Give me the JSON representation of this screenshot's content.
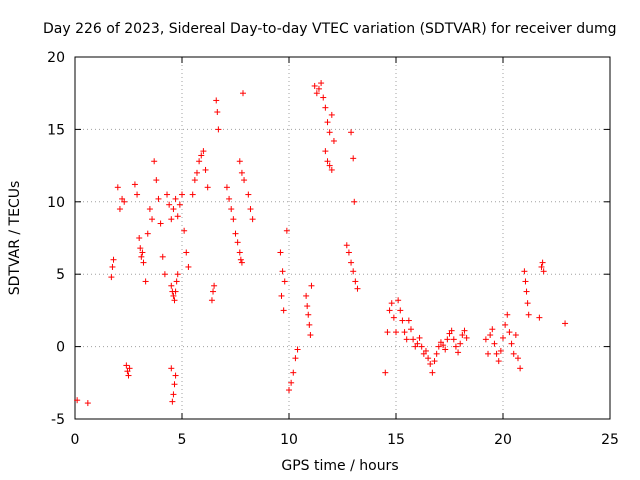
{
  "chart_data": {
    "type": "scatter",
    "title": "Day 226 of 2023, Sidereal Day-to-day VTEC variation (SDTVAR) for receiver dumg",
    "xlabel": "GPS time / hours",
    "ylabel": "SDTVAR / TECUs",
    "xlim": [
      0,
      25
    ],
    "ylim": [
      -5,
      20
    ],
    "xticks": [
      "0",
      "5",
      "10",
      "15",
      "20",
      "25"
    ],
    "yticks": [
      "-5",
      "0",
      "5",
      "10",
      "15",
      "20"
    ],
    "grid": true,
    "marker": "+",
    "color": "#ff0000",
    "series": [
      {
        "name": "SDTVAR",
        "x": [
          0.1,
          0.6,
          1.7,
          1.75,
          1.8,
          2.0,
          2.1,
          2.2,
          2.3,
          2.4,
          2.45,
          2.5,
          2.55,
          2.8,
          2.9,
          3.0,
          3.05,
          3.1,
          3.15,
          3.2,
          3.3,
          3.4,
          3.5,
          3.6,
          3.7,
          3.8,
          3.9,
          4.0,
          4.1,
          4.2,
          4.3,
          4.4,
          4.5,
          4.6,
          4.7,
          4.8,
          4.9,
          5.0,
          5.1,
          5.2,
          5.3,
          4.5,
          4.55,
          4.6,
          4.65,
          4.7,
          4.75,
          4.8,
          4.5,
          4.55,
          4.6,
          4.65,
          4.7,
          5.5,
          5.6,
          5.7,
          5.8,
          5.9,
          6.0,
          6.1,
          6.2,
          6.4,
          6.45,
          6.5,
          6.6,
          6.65,
          6.7,
          7.1,
          7.2,
          7.3,
          7.4,
          7.5,
          7.6,
          7.7,
          7.8,
          7.9,
          7.7,
          7.75,
          7.8,
          7.85,
          8.1,
          8.2,
          8.3,
          9.6,
          9.7,
          9.8,
          9.9,
          9.65,
          9.75,
          10.0,
          10.1,
          10.2,
          10.3,
          10.4,
          10.8,
          10.85,
          10.9,
          10.95,
          11.0,
          11.05,
          11.2,
          11.3,
          11.4,
          11.5,
          11.6,
          11.7,
          11.8,
          11.9,
          12.0,
          11.7,
          11.8,
          11.9,
          12.0,
          12.1,
          12.7,
          12.8,
          12.9,
          13.0,
          13.1,
          13.2,
          12.9,
          13.0,
          13.05,
          14.5,
          14.6,
          14.7,
          14.8,
          14.9,
          15.0,
          15.1,
          15.2,
          15.3,
          15.4,
          15.5,
          15.6,
          15.7,
          15.8,
          15.9,
          16.0,
          16.1,
          16.2,
          16.3,
          16.4,
          16.5,
          16.6,
          16.7,
          16.8,
          16.9,
          17.0,
          17.1,
          17.2,
          17.3,
          17.4,
          17.5,
          17.6,
          17.7,
          17.8,
          17.9,
          18.0,
          18.1,
          18.2,
          18.3,
          19.2,
          19.3,
          19.4,
          19.5,
          19.6,
          19.7,
          19.8,
          19.9,
          20.0,
          20.1,
          20.2,
          20.3,
          20.4,
          20.5,
          20.6,
          20.7,
          20.8,
          21.0,
          21.05,
          21.1,
          21.15,
          21.2,
          21.7,
          21.8,
          21.85,
          21.9,
          22.9
        ],
        "y": [
          -3.7,
          -3.9,
          4.8,
          5.5,
          6.0,
          11.0,
          9.5,
          10.2,
          10.0,
          -1.3,
          -1.7,
          -2.0,
          -1.5,
          11.2,
          10.5,
          7.5,
          6.8,
          6.2,
          6.5,
          5.8,
          4.5,
          7.8,
          9.5,
          8.8,
          12.8,
          11.5,
          10.2,
          8.5,
          6.2,
          5.0,
          10.5,
          9.8,
          8.8,
          9.5,
          10.2,
          9.0,
          9.8,
          10.5,
          8.0,
          6.5,
          5.5,
          4.2,
          3.8,
          3.5,
          3.2,
          3.8,
          4.5,
          5.0,
          -1.5,
          -3.8,
          -3.3,
          -2.6,
          -2.0,
          10.5,
          11.5,
          12.0,
          12.8,
          13.2,
          13.5,
          12.2,
          11.0,
          3.2,
          3.8,
          4.2,
          17.0,
          16.2,
          15.0,
          11.0,
          10.2,
          9.5,
          8.8,
          7.8,
          7.2,
          12.8,
          12.0,
          11.5,
          6.5,
          6.0,
          5.8,
          17.5,
          10.5,
          9.5,
          8.8,
          6.5,
          5.2,
          4.5,
          8.0,
          3.5,
          2.5,
          -3.0,
          -2.5,
          -1.8,
          -0.8,
          -0.2,
          3.5,
          2.8,
          2.2,
          1.5,
          0.8,
          4.2,
          18.0,
          17.5,
          17.8,
          18.2,
          17.2,
          16.5,
          15.5,
          14.8,
          16.0,
          13.5,
          12.8,
          12.5,
          12.2,
          14.2,
          7.0,
          6.5,
          5.8,
          5.2,
          4.5,
          4.0,
          14.8,
          13.0,
          10.0,
          -1.8,
          1.0,
          2.5,
          3.0,
          2.0,
          1.0,
          3.2,
          2.5,
          1.8,
          1.0,
          0.5,
          1.8,
          1.2,
          0.5,
          0.0,
          0.2,
          0.6,
          0.0,
          -0.5,
          -0.3,
          -0.8,
          -1.2,
          -1.8,
          -1.0,
          -0.5,
          0.0,
          0.3,
          0.1,
          -0.2,
          0.5,
          0.9,
          1.1,
          0.5,
          0.0,
          -0.4,
          0.2,
          0.8,
          1.1,
          0.6,
          0.5,
          -0.5,
          0.8,
          1.2,
          0.2,
          -0.5,
          -1.0,
          -0.3,
          0.6,
          1.5,
          2.2,
          1.0,
          0.2,
          -0.5,
          0.8,
          -0.8,
          -1.5,
          5.2,
          4.5,
          3.8,
          3.0,
          2.2,
          2.0,
          5.5,
          5.8,
          5.2,
          1.6
        ]
      }
    ]
  }
}
